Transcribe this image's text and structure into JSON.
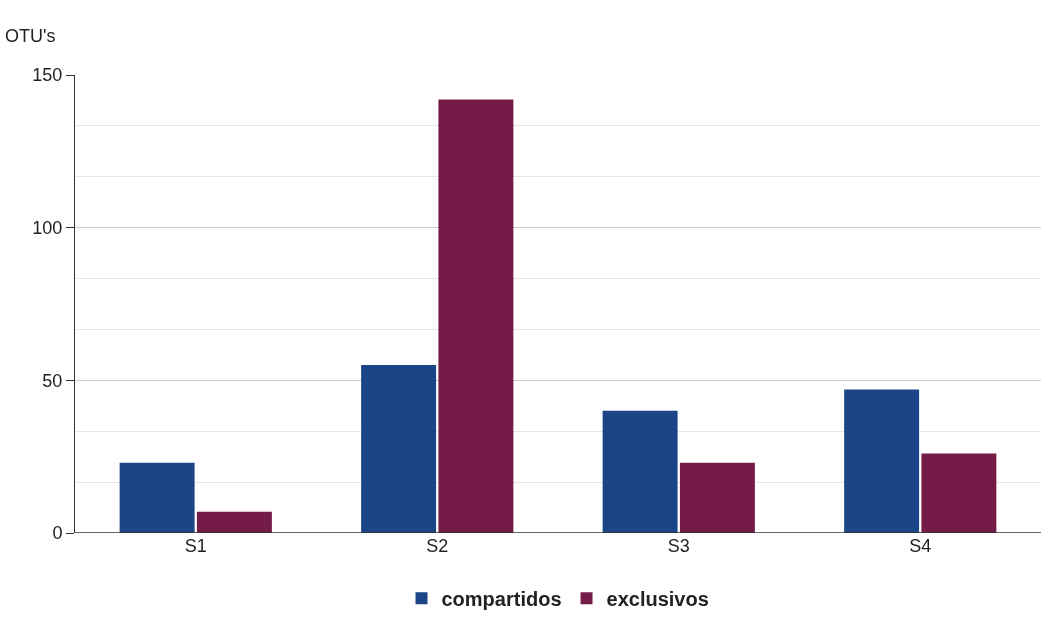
{
  "chart_data": {
    "type": "bar",
    "ylabel": "OTU's",
    "categories": [
      "S1",
      "S2",
      "S3",
      "S4"
    ],
    "series": [
      {
        "name": "compartidos",
        "color": "#1c4587",
        "values": [
          23,
          55,
          40,
          47
        ]
      },
      {
        "name": "exclusivos",
        "color": "#741b47",
        "values": [
          7,
          142,
          23,
          26
        ]
      }
    ],
    "ylim": [
      0,
      150
    ],
    "yticks": [
      0,
      50,
      100,
      150
    ],
    "grid": "y",
    "legend": "bottom"
  }
}
